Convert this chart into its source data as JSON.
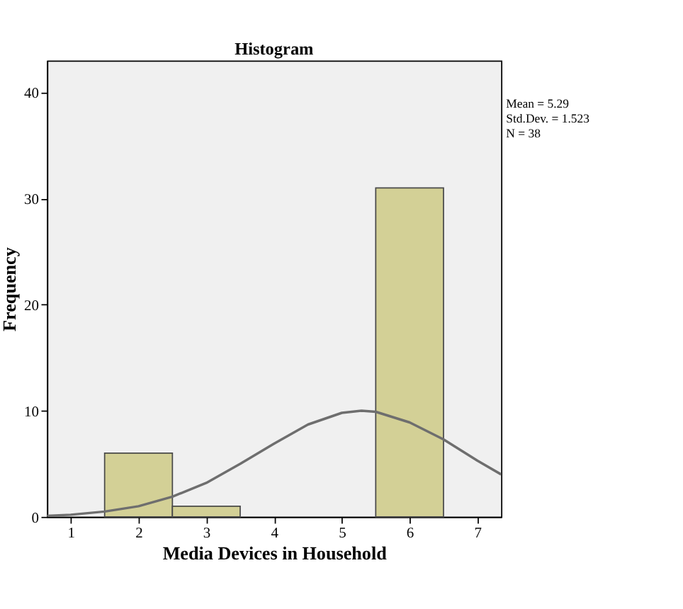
{
  "chart_data": {
    "type": "histogram",
    "title": "Histogram",
    "xlabel": "Media Devices in Household",
    "ylabel": "Frequency",
    "bins": [
      1.5,
      2.5,
      3.5,
      4.5,
      5.5,
      6.5
    ],
    "values": [
      6,
      1,
      0,
      0,
      31
    ],
    "color": "#d3d096",
    "series": [
      {
        "type": "line",
        "color": "#6e6e6e",
        "x": [
          0.65,
          1,
          1.5,
          2,
          2.5,
          3,
          3.5,
          4,
          4.5,
          5,
          5.29,
          5.5,
          6,
          6.5,
          7,
          7.35
        ],
        "values": [
          0.1,
          0.2,
          0.5,
          1.0,
          1.9,
          3.2,
          5.0,
          6.9,
          8.7,
          9.8,
          10.0,
          9.9,
          8.9,
          7.3,
          5.3,
          4.0
        ]
      }
    ],
    "xlim": [
      0.65,
      7.35
    ],
    "xticks": [
      1,
      2,
      3,
      4,
      5,
      6,
      7
    ],
    "ylim": [
      0,
      43
    ],
    "yticks": [
      0,
      10,
      20,
      30,
      40
    ],
    "grid": false,
    "annotations": [
      "Mean = 5.29",
      "Std.Dev. = 1.523",
      "N = 38"
    ]
  }
}
